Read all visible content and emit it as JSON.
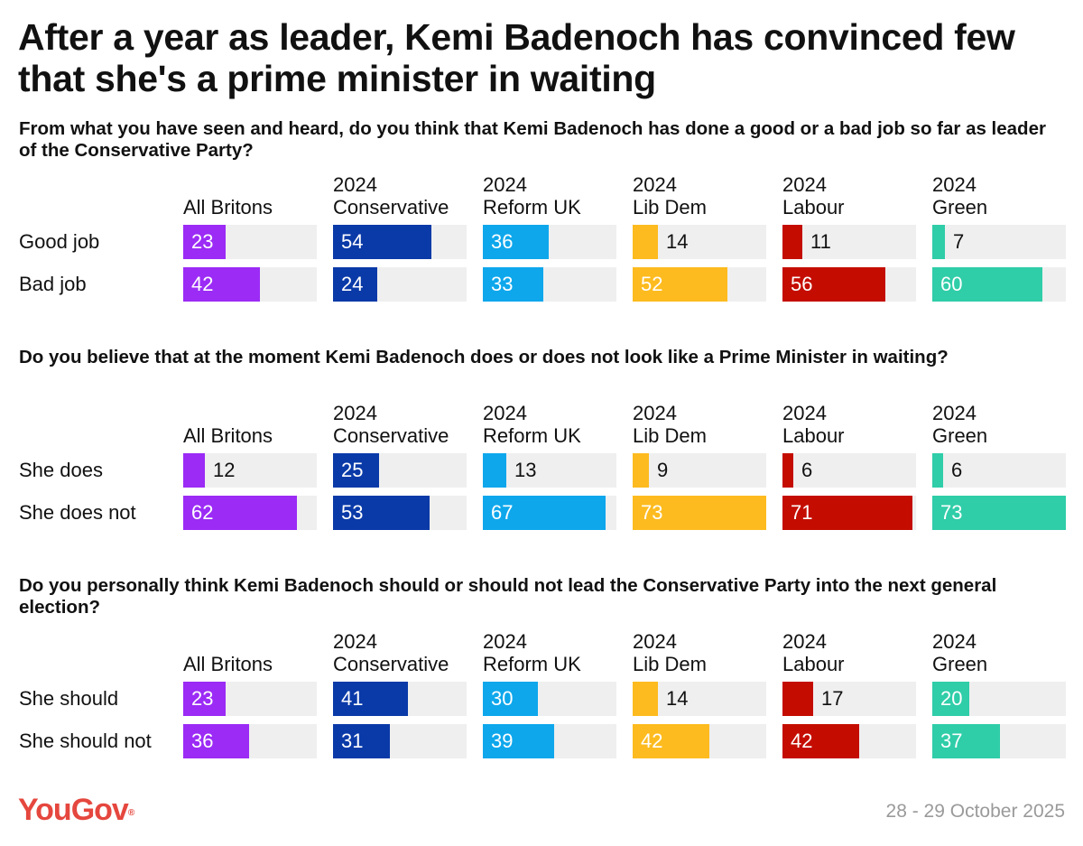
{
  "title": "After a year as leader, Kemi Badenoch has convinced few that she's a prime minister in waiting",
  "footer": {
    "logo": "YouGov",
    "date": "28 - 29 October 2025"
  },
  "colors": {
    "All Britons": "#9b2bf5",
    "2024 Conservative": "#0a3aa8",
    "2024 Reform UK": "#0ea7ec",
    "2024 Lib Dem": "#fdbb1f",
    "2024 Labour": "#c40d00",
    "2024 Green": "#2fcda8",
    "track": "#efefef",
    "logo": "#e5473e"
  },
  "columns": [
    {
      "key": "All Britons",
      "line1": "All Britons",
      "line2": ""
    },
    {
      "key": "2024 Conservative",
      "line1": "2024",
      "line2": "Conservative"
    },
    {
      "key": "2024 Reform UK",
      "line1": "2024",
      "line2": "Reform UK"
    },
    {
      "key": "2024 Lib Dem",
      "line1": "2024",
      "line2": "Lib Dem"
    },
    {
      "key": "2024 Labour",
      "line1": "2024",
      "line2": "Labour"
    },
    {
      "key": "2024 Green",
      "line1": "2024",
      "line2": "Green"
    }
  ],
  "chart_data": [
    {
      "type": "bar",
      "title": "From what you have seen and heard, do you think that Kemi Badenoch has done a good or a bad job so far as leader of the Conservative Party?",
      "categories": [
        "All Britons",
        "2024 Conservative",
        "2024 Reform UK",
        "2024 Lib Dem",
        "2024 Labour",
        "2024 Green"
      ],
      "series": [
        {
          "name": "Good job",
          "values": [
            23,
            54,
            36,
            14,
            11,
            7
          ]
        },
        {
          "name": "Bad job",
          "values": [
            42,
            24,
            33,
            52,
            56,
            60
          ]
        }
      ],
      "xlim": [
        0,
        73
      ],
      "unit": "%"
    },
    {
      "type": "bar",
      "title": "Do you believe that at the moment Kemi Badenoch does or does not look like a Prime Minister in waiting?",
      "categories": [
        "All Britons",
        "2024 Conservative",
        "2024 Reform UK",
        "2024 Lib Dem",
        "2024 Labour",
        "2024 Green"
      ],
      "series": [
        {
          "name": "She does",
          "values": [
            12,
            25,
            13,
            9,
            6,
            6
          ]
        },
        {
          "name": "She does not",
          "values": [
            62,
            53,
            67,
            73,
            71,
            73
          ]
        }
      ],
      "xlim": [
        0,
        73
      ],
      "unit": "%"
    },
    {
      "type": "bar",
      "title": "Do you personally think Kemi Badenoch should or should not lead the Conservative Party into the next general election?",
      "categories": [
        "All Britons",
        "2024 Conservative",
        "2024 Reform UK",
        "2024 Lib Dem",
        "2024 Labour",
        "2024 Green"
      ],
      "series": [
        {
          "name": "She should",
          "values": [
            23,
            41,
            30,
            14,
            17,
            20
          ]
        },
        {
          "name": "She should not",
          "values": [
            36,
            31,
            39,
            42,
            42,
            37
          ]
        }
      ],
      "xlim": [
        0,
        73
      ],
      "unit": "%"
    }
  ]
}
